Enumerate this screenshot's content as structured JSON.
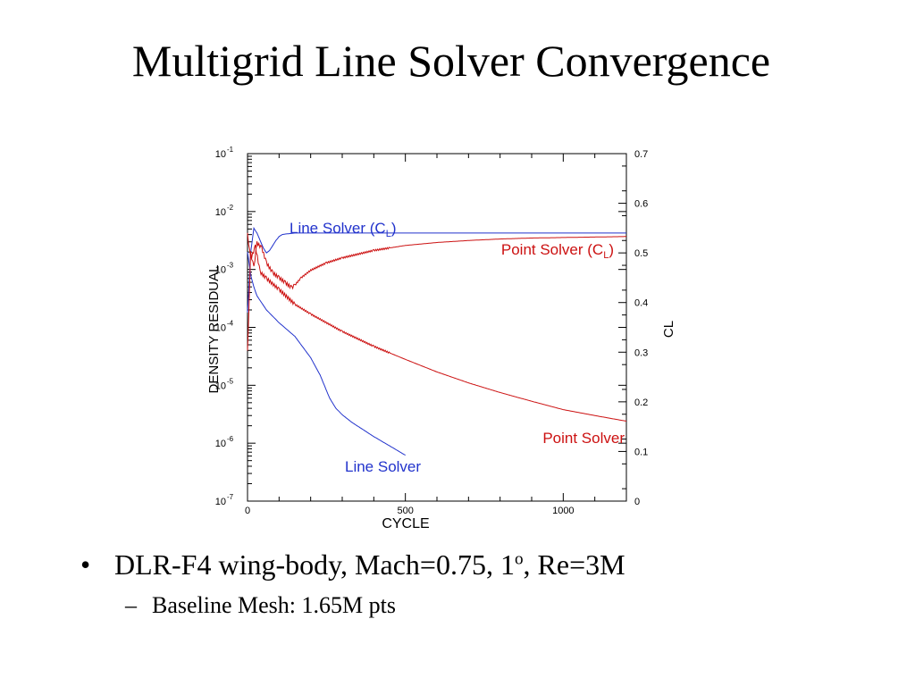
{
  "slide": {
    "title": "Multigrid Line Solver Convergence",
    "bullets": [
      {
        "marker": "•",
        "text_before": "DLR-F4 wing-body, Mach=0.75, 1",
        "superscript": "o",
        "text_after": ", Re=3M"
      }
    ],
    "sub_bullets": [
      {
        "marker": "–",
        "text": "Baseline Mesh: 1.65M pts"
      }
    ]
  },
  "chart_data": {
    "type": "line",
    "title": "",
    "xlabel": "CYCLE",
    "ylabel_left": "DENSITY RESIDUAL",
    "ylabel_right": "CL",
    "xlim": [
      0,
      1200
    ],
    "x_ticks": [
      0,
      500,
      1000
    ],
    "y_left_scale": "log",
    "y_left_lim_exponent": [
      -7,
      -1
    ],
    "y_left_ticks": [
      {
        "base": "10",
        "exp": "-1"
      },
      {
        "base": "10",
        "exp": "-2"
      },
      {
        "base": "10",
        "exp": "-3"
      },
      {
        "base": "10",
        "exp": "-4"
      },
      {
        "base": "10",
        "exp": "-5"
      },
      {
        "base": "10",
        "exp": "-6"
      },
      {
        "base": "10",
        "exp": "-7"
      }
    ],
    "y_right_lim": [
      0,
      0.7
    ],
    "y_right_ticks": [
      "0.7",
      "0.6",
      "0.5",
      "0.4",
      "0.3",
      "0.2",
      "0.1",
      "0"
    ],
    "grid": false,
    "colors": {
      "line_solver": "#2233cc",
      "point_solver": "#cc1111"
    },
    "annotations": [
      {
        "id": "line-cl",
        "text_main": "Line Solver (C",
        "text_sub": "L",
        "text_end": ")",
        "color": "#2233cc"
      },
      {
        "id": "point-cl",
        "text_main": "Point Solver (C",
        "text_sub": "L",
        "text_end": ")",
        "color": "#cc1111"
      },
      {
        "id": "point-res",
        "text_main": "Point Solver",
        "text_sub": "",
        "text_end": "",
        "color": "#cc1111"
      },
      {
        "id": "line-res",
        "text_main": "Line Solver",
        "text_sub": "",
        "text_end": "",
        "color": "#2233cc"
      }
    ],
    "series": [
      {
        "id": "line_res",
        "name": "Line Solver",
        "axis": "left",
        "color": "#2233cc",
        "x": [
          0,
          10,
          20,
          30,
          60,
          100,
          150,
          200,
          230,
          260,
          280,
          300,
          330,
          360,
          400,
          450,
          500
        ],
        "y": [
          0.002,
          0.0008,
          0.0005,
          0.00035,
          0.0002,
          0.00012,
          7e-05,
          3e-05,
          1.5e-05,
          6e-06,
          4e-06,
          3.1e-06,
          2.3e-06,
          1.8e-06,
          1.3e-06,
          9e-07,
          6.2e-07
        ]
      },
      {
        "id": "point_res",
        "name": "Point Solver",
        "axis": "left",
        "color": "#cc1111",
        "x": [
          0,
          10,
          25,
          40,
          60,
          100,
          150,
          200,
          300,
          400,
          500,
          600,
          700,
          800,
          900,
          1000,
          1100,
          1200
        ],
        "y": [
          0.004,
          0.0015,
          0.0025,
          0.0009,
          0.0007,
          0.00045,
          0.00025,
          0.00017,
          8.5e-05,
          4.7e-05,
          2.8e-05,
          1.7e-05,
          1.1e-05,
          7.5e-06,
          5.3e-06,
          3.8e-06,
          3e-06,
          2.4e-06
        ],
        "noisy": true
      },
      {
        "id": "line_cl",
        "name": "Line Solver (CL)",
        "axis": "right",
        "color": "#2233cc",
        "x": [
          0,
          10,
          20,
          30,
          40,
          50,
          60,
          70,
          80,
          90,
          100,
          110,
          120,
          150,
          200,
          300,
          500,
          800,
          1200
        ],
        "y": [
          0.38,
          0.5,
          0.55,
          0.54,
          0.525,
          0.51,
          0.5,
          0.505,
          0.515,
          0.525,
          0.533,
          0.537,
          0.538,
          0.54,
          0.54,
          0.54,
          0.54,
          0.54,
          0.54
        ]
      },
      {
        "id": "point_cl",
        "name": "Point Solver (CL)",
        "axis": "right",
        "color": "#cc1111",
        "x": [
          0,
          10,
          20,
          30,
          45,
          60,
          80,
          100,
          120,
          140,
          150,
          170,
          200,
          250,
          300,
          400,
          500,
          600,
          700,
          800,
          900,
          1000,
          1100,
          1200
        ],
        "y": [
          0.3,
          0.5,
          0.47,
          0.52,
          0.51,
          0.48,
          0.46,
          0.45,
          0.44,
          0.43,
          0.435,
          0.45,
          0.465,
          0.48,
          0.49,
          0.505,
          0.515,
          0.521,
          0.525,
          0.528,
          0.53,
          0.531,
          0.532,
          0.533
        ],
        "noisy": true
      }
    ]
  }
}
